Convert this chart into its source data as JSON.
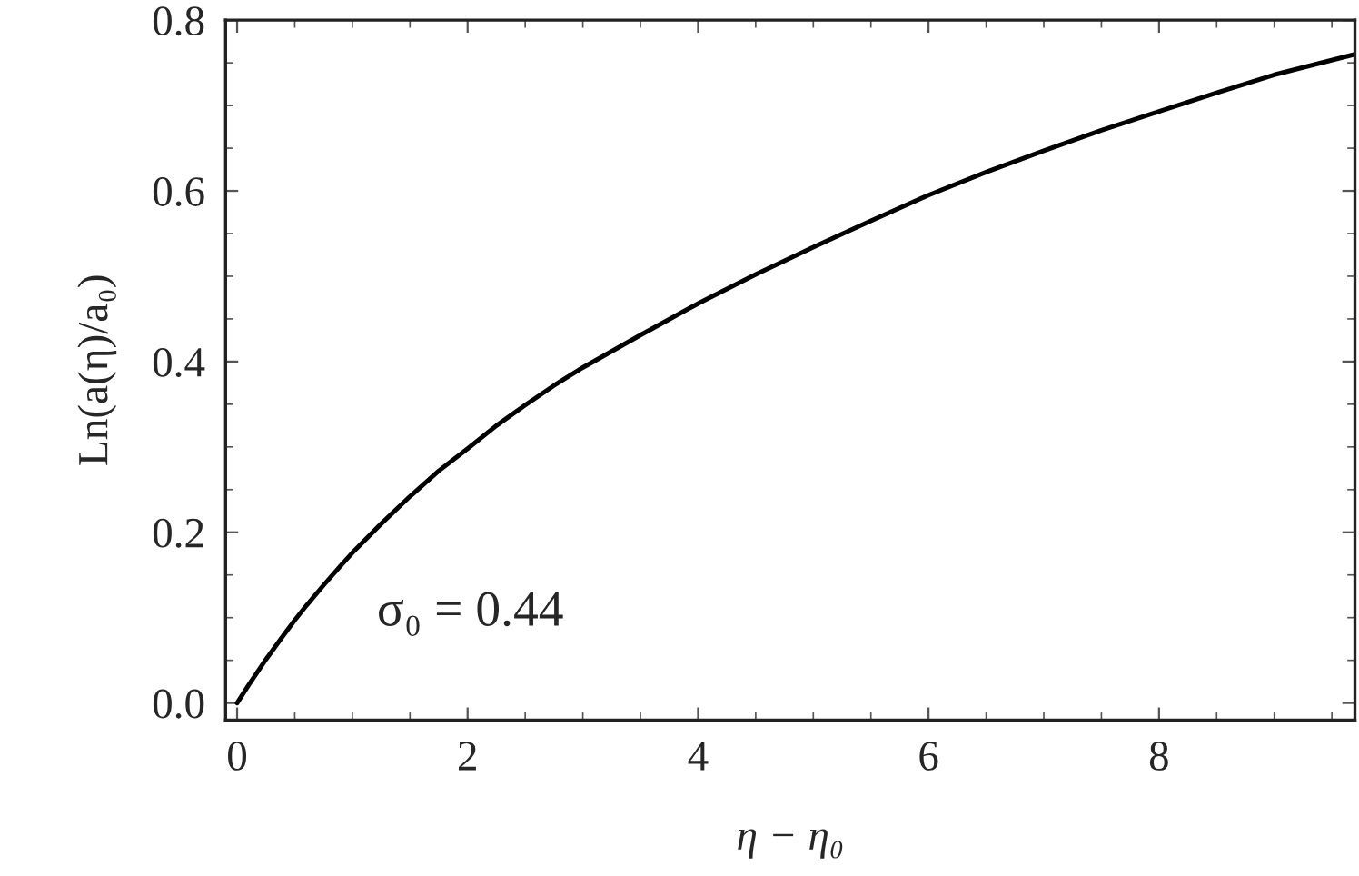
{
  "chart_data": {
    "type": "line",
    "xlabel": "η − η₀",
    "ylabel": "Ln(a(η)/a₀)",
    "annotations": [
      "σ₀ = 0.44"
    ],
    "x": [
      0,
      0.1,
      0.25,
      0.4,
      0.5,
      0.6,
      0.75,
      0.9,
      1,
      1.25,
      1.5,
      1.75,
      2,
      2.25,
      2.5,
      2.75,
      3,
      3.5,
      4,
      4.5,
      5,
      5.5,
      6,
      6.5,
      7,
      7.5,
      8,
      8.5,
      9,
      9.7
    ],
    "series": [
      {
        "color": "#000000",
        "values": [
          0,
          0.021,
          0.051,
          0.079,
          0.097,
          0.114,
          0.138,
          0.161,
          0.176,
          0.21,
          0.242,
          0.272,
          0.298,
          0.325,
          0.349,
          0.372,
          0.393,
          0.431,
          0.468,
          0.502,
          0.534,
          0.565,
          0.595,
          0.622,
          0.647,
          0.671,
          0.693,
          0.715,
          0.736,
          0.76
        ]
      }
    ],
    "xlim": [
      -0.1,
      9.7
    ],
    "ylim": [
      -0.02,
      0.8
    ],
    "xticks": [
      0,
      2,
      4,
      6,
      8
    ],
    "yticks": [
      {
        "value": 0,
        "label": "0.0"
      },
      0.2,
      0.4,
      0.6,
      0.8
    ],
    "line_style": "solid"
  }
}
